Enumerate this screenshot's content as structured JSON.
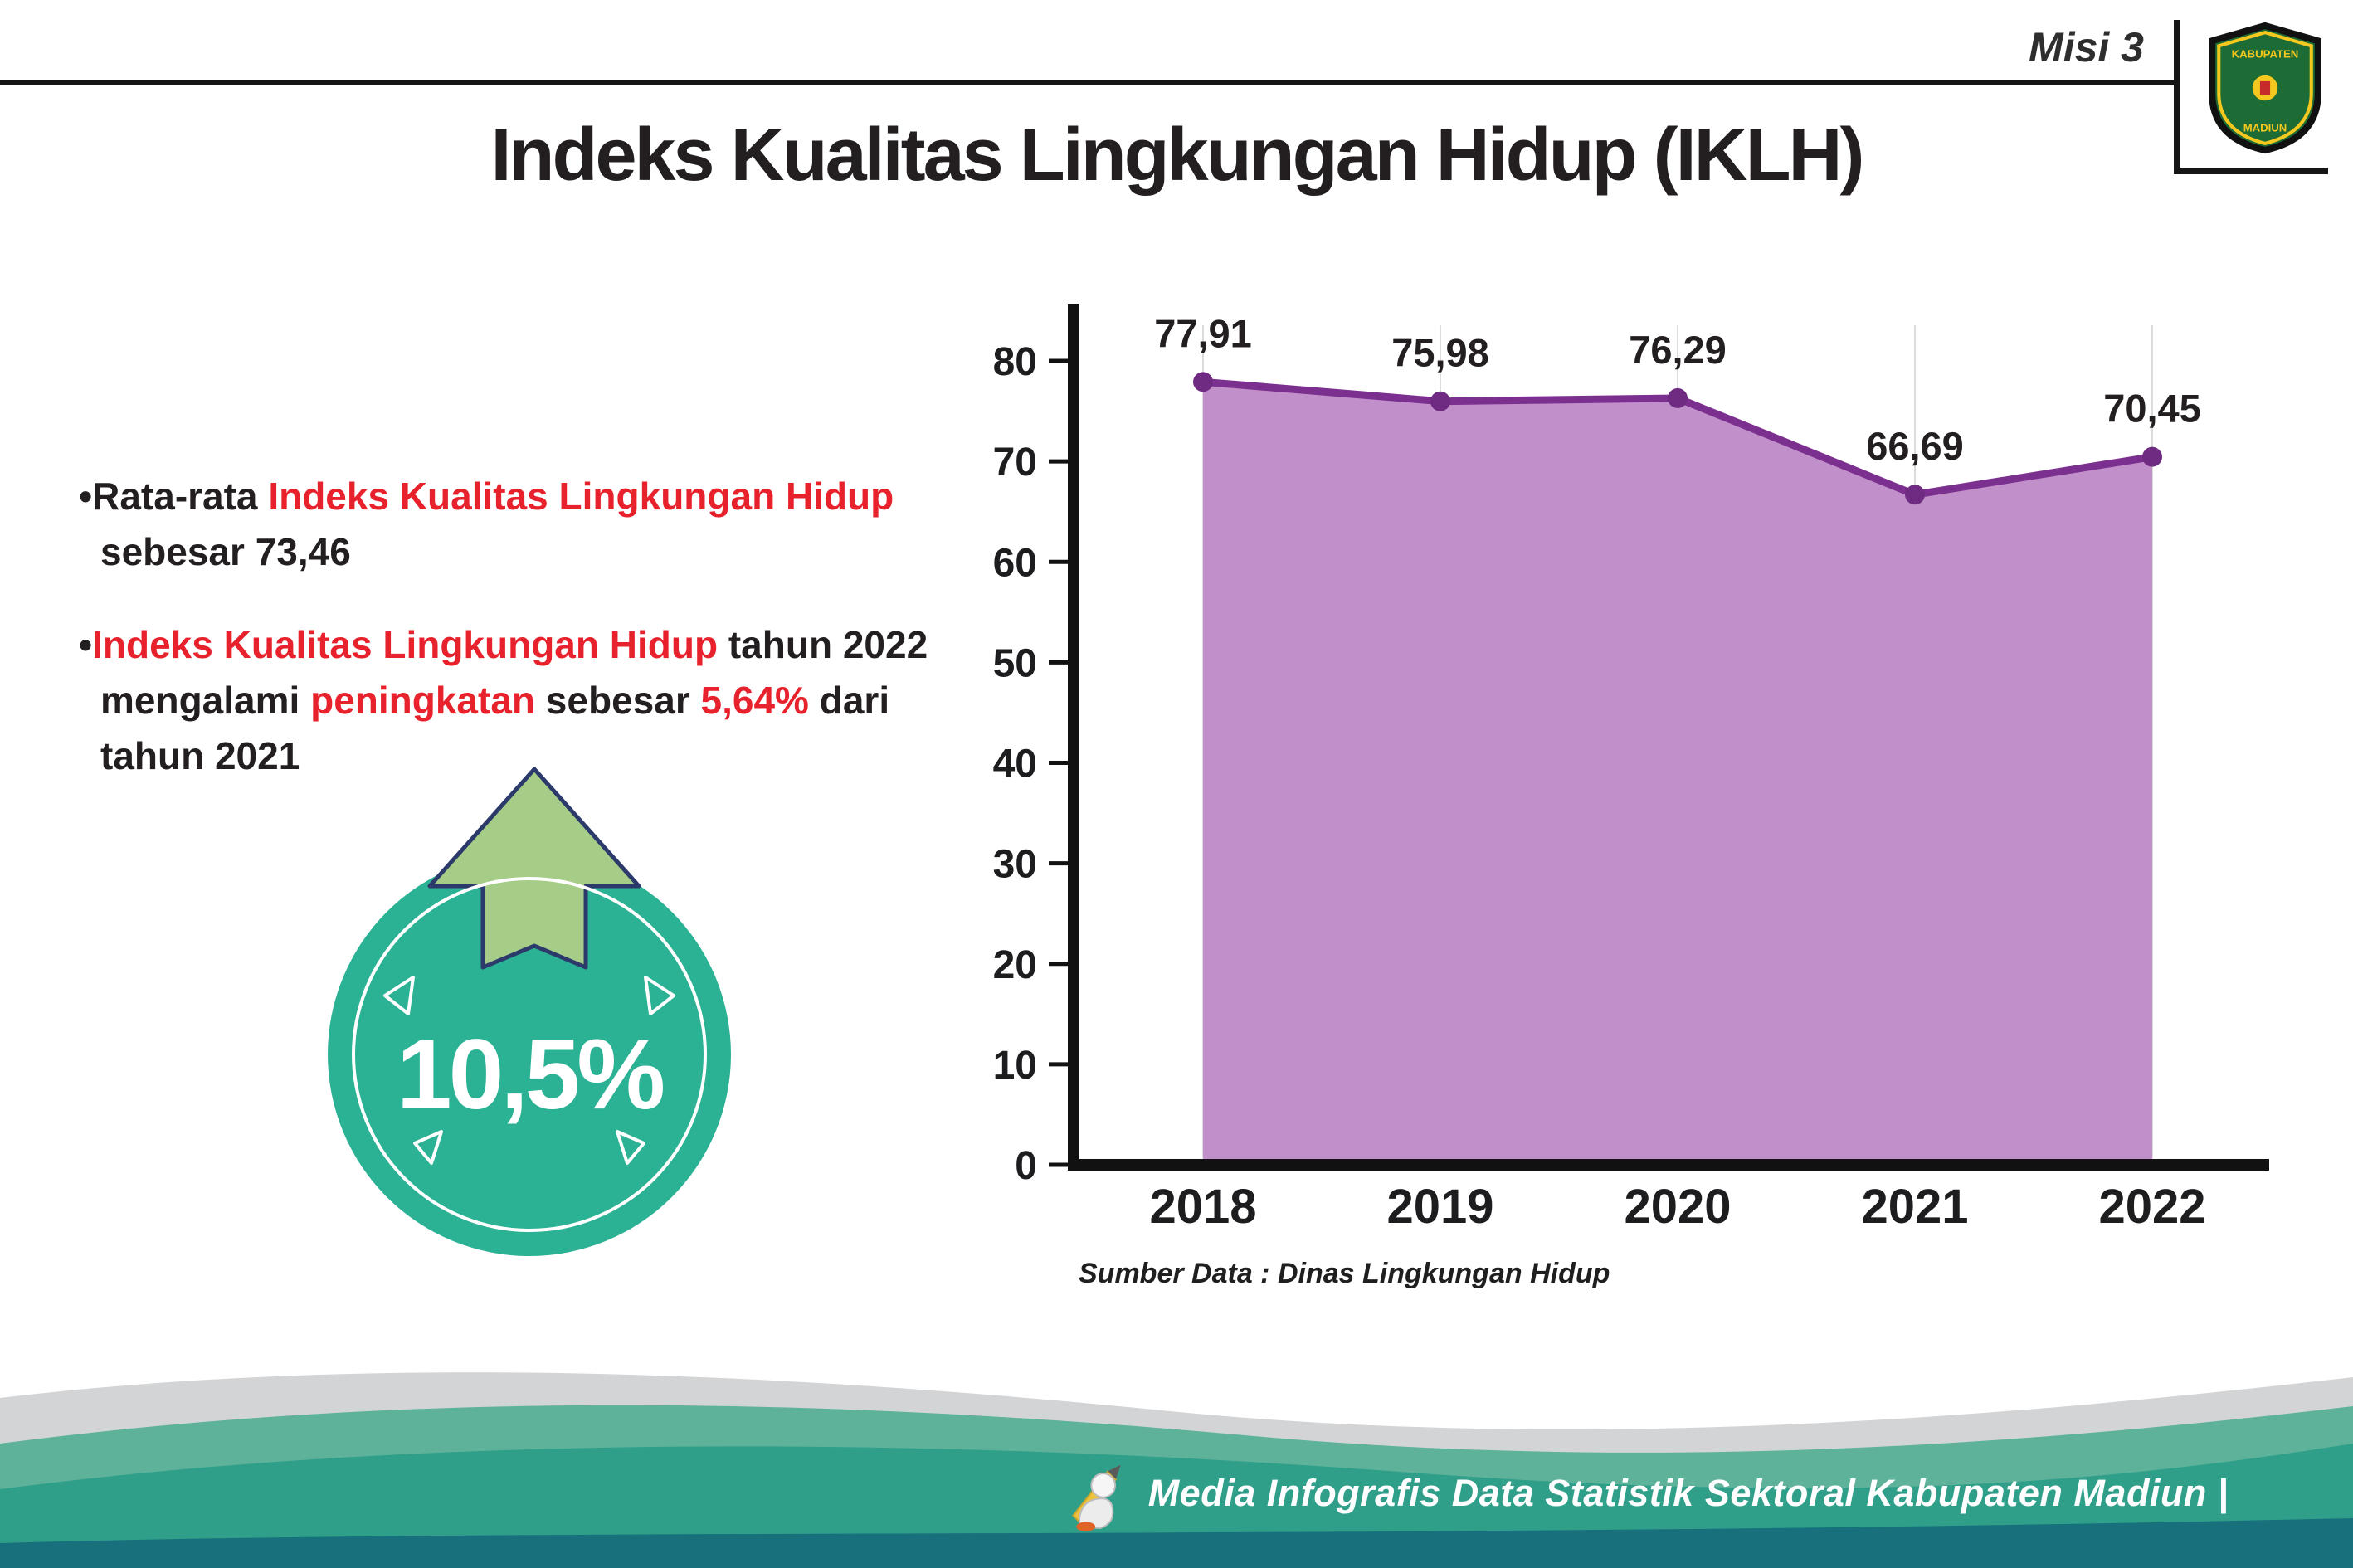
{
  "palette": {
    "dark": "#231f20",
    "red": "#e8222d",
    "teal": "#2bb193",
    "arrowgreen": "#a6cd87",
    "navy": "#2c3a6b",
    "wavegray": "#d2d4d6",
    "wavegreenlight": "#5eb29a",
    "wavegreen": "#2f9f8a",
    "wavedark": "#17707b"
  },
  "header": {
    "misi": "Misi 3",
    "title": "Indeks Kualitas Lingkungan Hidup (IKLH)"
  },
  "logo": {
    "top": "KABUPATEN",
    "bottom": "MADIUN"
  },
  "bullets": [
    {
      "marker": "•",
      "segments": [
        {
          "text": "Rata-rata ",
          "style": "dark"
        },
        {
          "text": "Indeks Kualitas Lingkungan Hidup",
          "style": "red"
        },
        {
          "text": " sebesar 73,46",
          "style": "dark"
        }
      ]
    },
    {
      "marker": "•",
      "segments": [
        {
          "text": "Indeks Kualitas Lingkungan Hidup",
          "style": "red"
        },
        {
          "text": " tahun 2022 mengalami ",
          "style": "dark"
        },
        {
          "text": "peningkatan",
          "style": "red"
        },
        {
          "text": " sebesar ",
          "style": "dark"
        },
        {
          "text": "5,64%",
          "style": "red"
        },
        {
          "text": " dari tahun 2021",
          "style": "dark"
        }
      ]
    }
  ],
  "highlight": {
    "value": "10,5%"
  },
  "chart_data": {
    "type": "area",
    "categories": [
      "2018",
      "2019",
      "2020",
      "2021",
      "2022"
    ],
    "values": [
      77.91,
      75.98,
      76.29,
      66.69,
      70.45
    ],
    "point_labels": [
      "77,91",
      "75,98",
      "76,29",
      "66,69",
      "70,45"
    ],
    "title": "",
    "xlabel": "",
    "ylabel": "",
    "ylim": [
      0,
      80
    ],
    "ytick_step": 10,
    "grid": "vertical-light",
    "legend": "none",
    "source_caption": "Sumber Data : Dinas Lingkungan Hidup",
    "colors": {
      "area": "#c18fca",
      "line": "#7b2f8e",
      "marker": "#6f2a82",
      "axis": "#111111",
      "grid": "#dcdcdc",
      "label": "#231f20"
    }
  },
  "footer": {
    "text": "Media Infografis Data Statistik Sektoral Kabupaten Madiun |"
  }
}
